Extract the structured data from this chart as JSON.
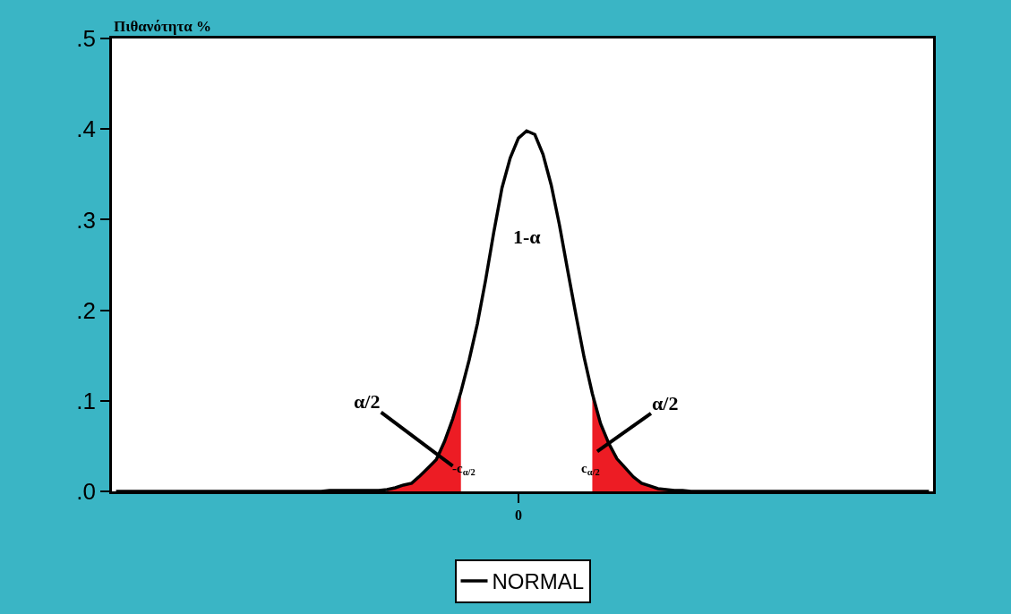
{
  "chart_data": {
    "type": "line",
    "ylabel": "Πιθανότητα %",
    "categories": [
      null,
      null,
      null,
      null,
      null,
      null,
      null,
      null,
      null,
      null,
      null,
      null,
      null,
      null,
      null,
      null,
      null,
      null,
      null,
      null,
      null,
      null,
      null,
      null,
      null,
      null,
      null,
      null,
      null,
      null,
      null,
      null,
      null,
      null,
      null,
      null,
      null,
      null,
      null,
      null,
      null,
      null,
      null,
      null,
      null,
      null,
      null,
      null,
      null,
      "0",
      null,
      null,
      null,
      null,
      null,
      null,
      null,
      null,
      null,
      null,
      null,
      null,
      null,
      null,
      null,
      null,
      null,
      null,
      null,
      null,
      null,
      null,
      null,
      null,
      null,
      null,
      null,
      null,
      null,
      null,
      null,
      null,
      null,
      null,
      null,
      null,
      null,
      null,
      null,
      null,
      null,
      null,
      null,
      null,
      null,
      null,
      null,
      null,
      null,
      null
    ],
    "ylim": [
      0,
      0.5
    ],
    "yticks": [
      {
        "value": 0,
        "label": ".0"
      },
      {
        "value": 0.1,
        "label": ".1"
      },
      {
        "value": 0.2,
        "label": ".2"
      },
      {
        "value": 0.3,
        "label": ".3"
      },
      {
        "value": 0.4,
        "label": ".4"
      },
      {
        "value": 0.5,
        "label": ".5"
      }
    ],
    "series": [
      {
        "type": "area",
        "color": "#ed1c24",
        "values": [
          null,
          null,
          null,
          null,
          null,
          null,
          null,
          null,
          null,
          null,
          null,
          null,
          null,
          null,
          null,
          null,
          null,
          null,
          null,
          null,
          null,
          null,
          null,
          null,
          null,
          null,
          null,
          null,
          null,
          null,
          null,
          null,
          null,
          0.002,
          0.004,
          0.007,
          0.009,
          0.017,
          0.026,
          0.035,
          0.055,
          0.08,
          0.11,
          null,
          null,
          null,
          null,
          null,
          null,
          null,
          null,
          null,
          null,
          null,
          null,
          null,
          null,
          null,
          null,
          null,
          null,
          null,
          null,
          null,
          null,
          null,
          null,
          null,
          null,
          null,
          null,
          null,
          null,
          null,
          null,
          null,
          null,
          null,
          null,
          null,
          null,
          null,
          null,
          null,
          null,
          null,
          null,
          null,
          null,
          null,
          null,
          null,
          null,
          null,
          null,
          null,
          null,
          null,
          null,
          null
        ]
      },
      {
        "type": "area",
        "color": "#ed1c24",
        "values": [
          null,
          null,
          null,
          null,
          null,
          null,
          null,
          null,
          null,
          null,
          null,
          null,
          null,
          null,
          null,
          null,
          null,
          null,
          null,
          null,
          null,
          null,
          null,
          null,
          null,
          null,
          null,
          null,
          null,
          null,
          null,
          null,
          null,
          null,
          null,
          null,
          null,
          null,
          null,
          null,
          null,
          null,
          null,
          null,
          null,
          null,
          null,
          null,
          null,
          null,
          null,
          null,
          null,
          null,
          null,
          null,
          null,
          null,
          0.108,
          0.075,
          0.053,
          0.036,
          0.026,
          0.016,
          0.009,
          0.006,
          0.003,
          0.002,
          0.001,
          null,
          null,
          null,
          null,
          null,
          null,
          null,
          null,
          null,
          null,
          null,
          null,
          null,
          null,
          null,
          null,
          null,
          null,
          null,
          null,
          null,
          null,
          null,
          null,
          null,
          null,
          null,
          null,
          null,
          null,
          null
        ]
      },
      {
        "name": "NORMAL",
        "color": "#000000",
        "values": [
          0,
          0,
          0,
          0,
          0,
          0,
          0,
          0,
          0,
          0,
          0,
          0,
          0,
          0,
          0,
          0,
          0,
          0,
          0,
          0,
          0,
          0,
          0,
          0,
          0,
          0,
          0.001,
          0.001,
          0.001,
          0.001,
          0.001,
          0.001,
          0.001,
          0.002,
          0.004,
          0.007,
          0.009,
          0.017,
          0.026,
          0.035,
          0.055,
          0.08,
          0.11,
          0.145,
          0.185,
          0.233,
          0.286,
          0.335,
          0.368,
          0.39,
          0.398,
          0.394,
          0.372,
          0.338,
          0.294,
          0.244,
          0.195,
          0.148,
          0.108,
          0.075,
          0.053,
          0.036,
          0.026,
          0.016,
          0.009,
          0.006,
          0.003,
          0.002,
          0.001,
          0.001,
          0,
          0,
          0,
          0,
          0,
          0,
          0,
          0,
          0,
          0,
          0,
          0,
          0,
          0,
          0,
          0,
          0,
          0,
          0,
          0,
          0,
          0,
          0,
          0,
          0,
          0,
          0,
          0,
          0,
          0
        ]
      }
    ],
    "annotations": [
      "1-α",
      "α/2",
      "α/2",
      "-c$_{α/2}$",
      "c$_{α/2}$"
    ],
    "legend": "bottom"
  }
}
